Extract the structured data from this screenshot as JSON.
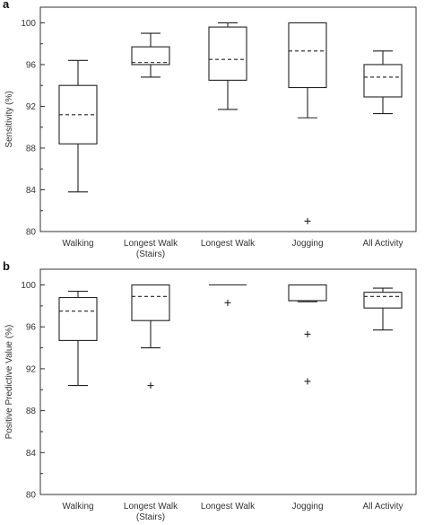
{
  "chart_data": [
    {
      "panel": "a",
      "type": "box",
      "ylabel": "Sensitivity (%)",
      "ylim": [
        80,
        101.5
      ],
      "yticks": [
        80,
        84,
        88,
        92,
        96,
        100
      ],
      "categories": [
        "Walking",
        "Longest Walk\n(Stairs)",
        "Longest Walk",
        "Jogging",
        "All Activity"
      ],
      "boxes": [
        {
          "whisker_low": 83.8,
          "q1": 88.4,
          "median": 91.2,
          "q3": 94.0,
          "whisker_high": 96.4,
          "outliers": []
        },
        {
          "whisker_low": 94.8,
          "q1": 96.0,
          "median": 96.2,
          "q3": 97.7,
          "whisker_high": 99.0,
          "outliers": []
        },
        {
          "whisker_low": 91.7,
          "q1": 94.5,
          "median": 96.5,
          "q3": 99.6,
          "whisker_high": 100.0,
          "outliers": []
        },
        {
          "whisker_low": 90.9,
          "q1": 93.8,
          "median": 97.3,
          "q3": 100.0,
          "whisker_high": 100.0,
          "outliers": [
            81.0
          ]
        },
        {
          "whisker_low": 91.3,
          "q1": 92.9,
          "median": 94.8,
          "q3": 96.0,
          "whisker_high": 97.3,
          "outliers": []
        }
      ]
    },
    {
      "panel": "b",
      "type": "box",
      "ylabel": "Positive Predictive Value (%)",
      "ylim": [
        80,
        101.5
      ],
      "yticks": [
        80,
        84,
        88,
        92,
        96,
        100
      ],
      "categories": [
        "Walking",
        "Longest Walk\n(Stairs)",
        "Longest Walk",
        "Jogging",
        "All Activity"
      ],
      "boxes": [
        {
          "whisker_low": 90.4,
          "q1": 94.7,
          "median": 97.5,
          "q3": 98.8,
          "whisker_high": 99.4,
          "outliers": []
        },
        {
          "whisker_low": 94.0,
          "q1": 96.6,
          "median": 98.9,
          "q3": 100.0,
          "whisker_high": 100.0,
          "outliers": [
            90.4
          ]
        },
        {
          "whisker_low": 100.0,
          "q1": 100.0,
          "median": 100.0,
          "q3": 100.0,
          "whisker_high": 100.0,
          "outliers": [
            98.3
          ]
        },
        {
          "whisker_low": 98.4,
          "q1": 98.5,
          "median": 98.5,
          "q3": 100.0,
          "whisker_high": 100.0,
          "outliers": [
            95.3,
            90.8
          ]
        },
        {
          "whisker_low": 95.7,
          "q1": 97.8,
          "median": 98.9,
          "q3": 99.3,
          "whisker_high": 99.7,
          "outliers": []
        }
      ]
    }
  ]
}
